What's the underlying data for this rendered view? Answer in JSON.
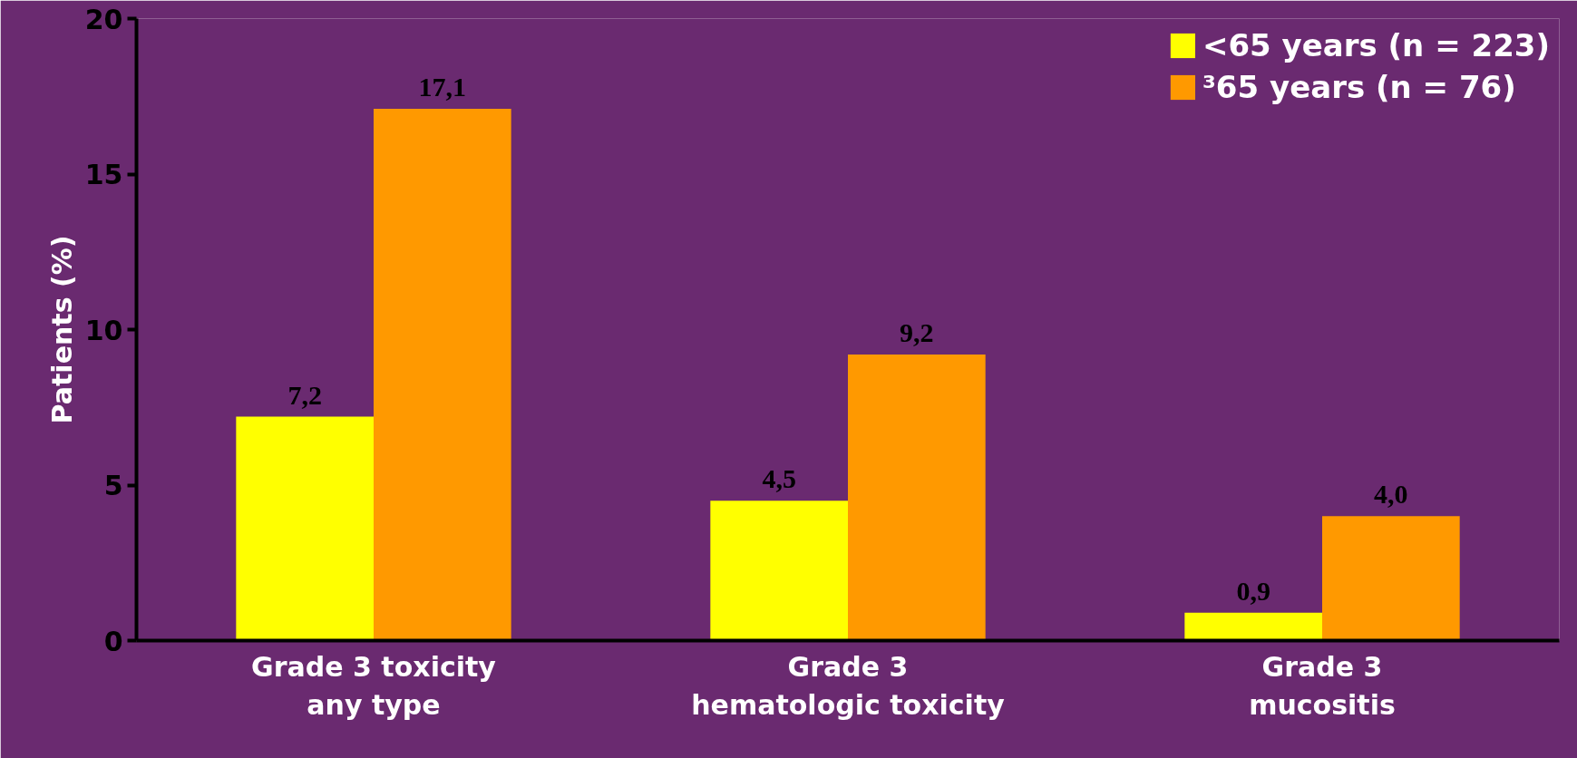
{
  "chart_data": {
    "type": "bar",
    "ylabel": "Patients (%)",
    "categories": [
      "Grade 3 toxicity\nany type",
      "Grade 3\nhematologic toxicity",
      "Grade 3\nmucositis"
    ],
    "series": [
      {
        "name": "<65 years (n = 223)",
        "color": "#ffff00",
        "values": [
          7.2,
          4.5,
          0.9
        ],
        "value_labels": [
          "7,2",
          "4,5",
          "0,9"
        ]
      },
      {
        "name": "³65 years (n = 76)",
        "color": "#ff9900",
        "values": [
          17.1,
          9.2,
          4.0
        ],
        "value_labels": [
          "17,1",
          "9,2",
          "4,0"
        ]
      }
    ],
    "ylim": [
      0,
      20
    ],
    "yticks": [
      0,
      5,
      10,
      15,
      20
    ],
    "grid": false,
    "legend": "top right"
  }
}
